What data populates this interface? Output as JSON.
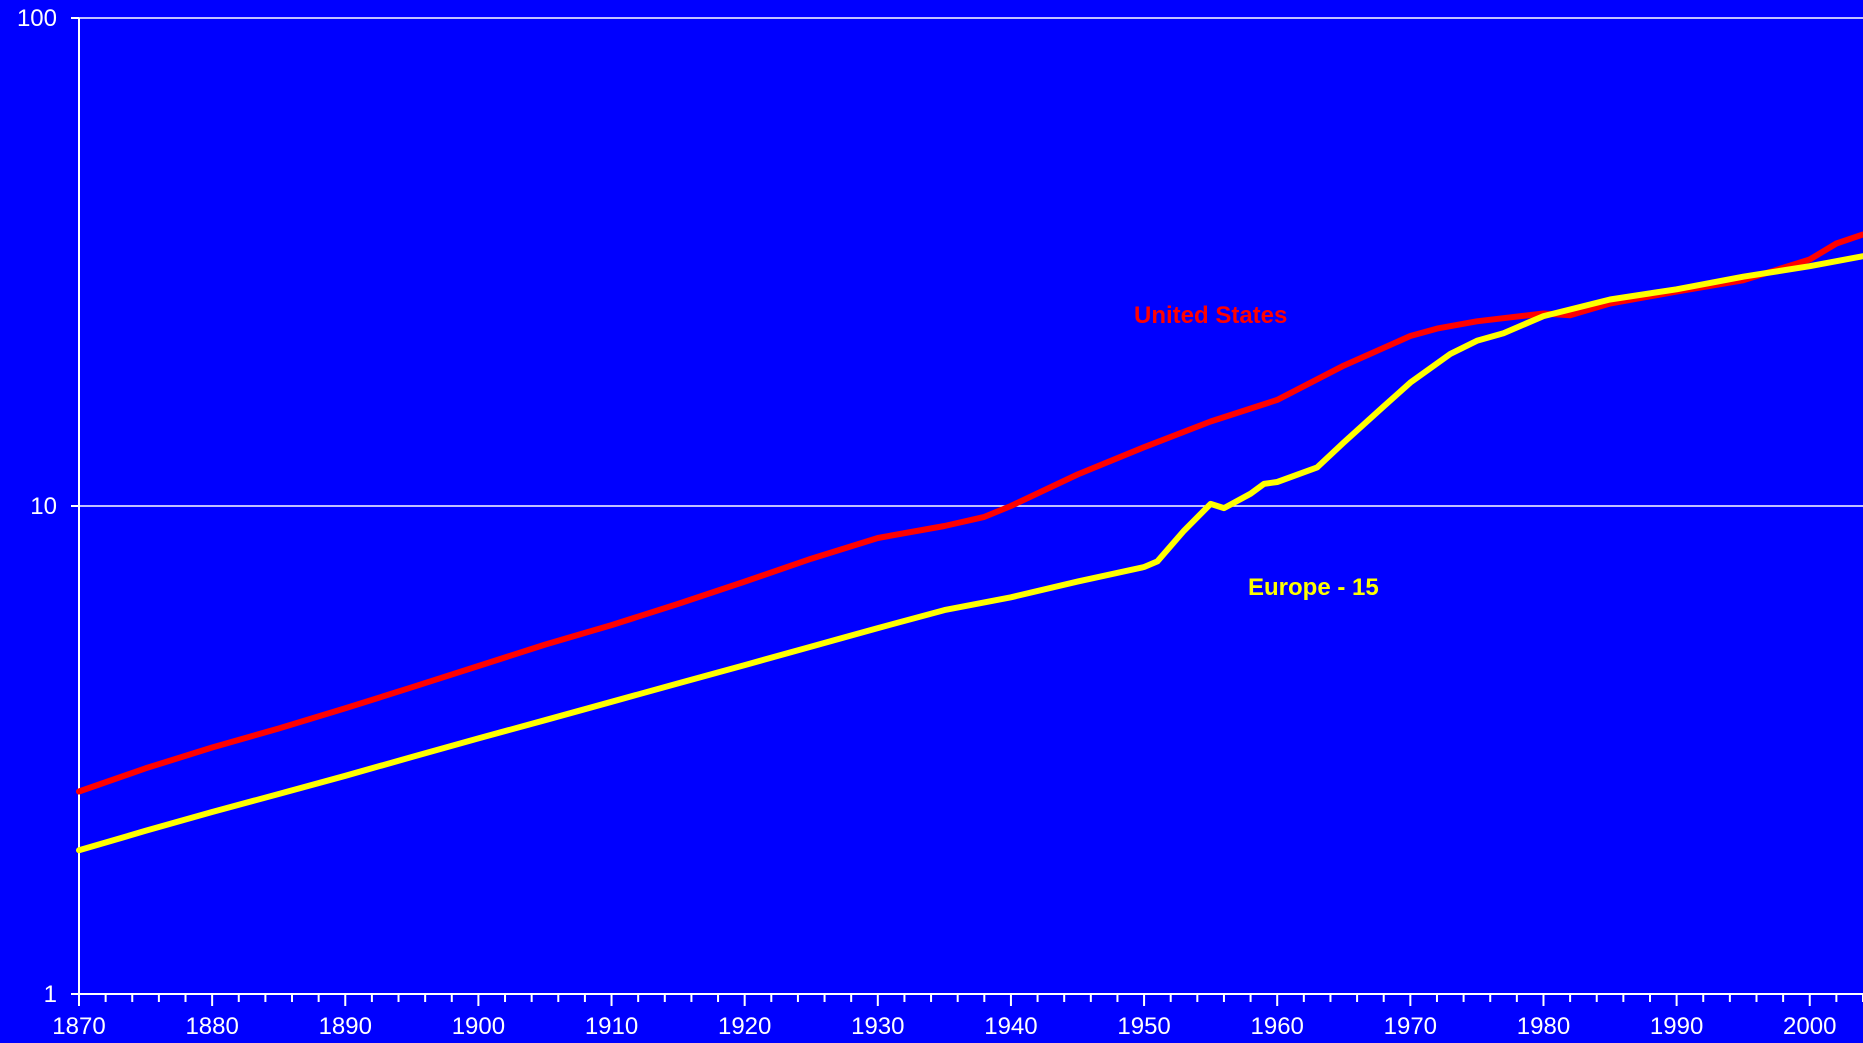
{
  "colors": {
    "background": "#0000FF",
    "axis": "#FFFFFF",
    "gridline": "#FFFFFF",
    "united_states": "#FF0000",
    "europe_15": "#FFFF00"
  },
  "chart_data": {
    "type": "line",
    "title": "",
    "xlabel": "",
    "ylabel": "",
    "y_scale": "log",
    "xlim": [
      1870,
      2004
    ],
    "ylim": [
      1,
      100
    ],
    "grid": "horizontal major only",
    "legend": "none (inline labels)",
    "x_ticks": [
      "1870",
      "1880",
      "1890",
      "1900",
      "1910",
      "1920",
      "1930",
      "1940",
      "1950",
      "1960",
      "1970",
      "1980",
      "1990",
      "2000"
    ],
    "y_ticks": [
      "1",
      "10",
      "100"
    ],
    "annotations": [
      {
        "text": "United States",
        "series": "United States"
      },
      {
        "text": "Europe - 15",
        "series": "Europe - 15"
      }
    ],
    "series": [
      {
        "name": "United States",
        "color": "#FF0000",
        "x": [
          1870,
          1875,
          1880,
          1885,
          1890,
          1895,
          1900,
          1905,
          1910,
          1915,
          1920,
          1925,
          1930,
          1935,
          1938,
          1940,
          1945,
          1950,
          1955,
          1960,
          1965,
          1970,
          1972,
          1975,
          1980,
          1982,
          1985,
          1990,
          1995,
          2000,
          2002,
          2004
        ],
        "y": [
          2.6,
          2.9,
          3.2,
          3.5,
          3.85,
          4.25,
          4.7,
          5.2,
          5.7,
          6.3,
          7.0,
          7.8,
          8.6,
          9.1,
          9.5,
          10.0,
          11.6,
          13.2,
          14.9,
          16.5,
          19.4,
          22.3,
          23.1,
          23.9,
          24.8,
          24.6,
          26.0,
          27.5,
          29.0,
          32.0,
          34.5,
          36.0
        ]
      },
      {
        "name": "Europe - 15",
        "color": "#FFFF00",
        "x": [
          1870,
          1875,
          1880,
          1885,
          1890,
          1895,
          1900,
          1905,
          1910,
          1915,
          1920,
          1925,
          1930,
          1935,
          1940,
          1945,
          1950,
          1951,
          1953,
          1955,
          1956,
          1958,
          1959,
          1960,
          1963,
          1965,
          1968,
          1970,
          1973,
          1975,
          1977,
          1980,
          1985,
          1990,
          1995,
          2000,
          2004
        ],
        "y": [
          1.97,
          2.16,
          2.36,
          2.57,
          2.8,
          3.06,
          3.34,
          3.64,
          3.97,
          4.33,
          4.72,
          5.15,
          5.62,
          6.12,
          6.5,
          7.0,
          7.5,
          7.7,
          8.9,
          10.1,
          9.9,
          10.6,
          11.1,
          11.2,
          12.0,
          13.5,
          16.0,
          17.9,
          20.5,
          21.8,
          22.6,
          24.5,
          26.5,
          27.8,
          29.5,
          31.0,
          32.5
        ]
      }
    ]
  }
}
